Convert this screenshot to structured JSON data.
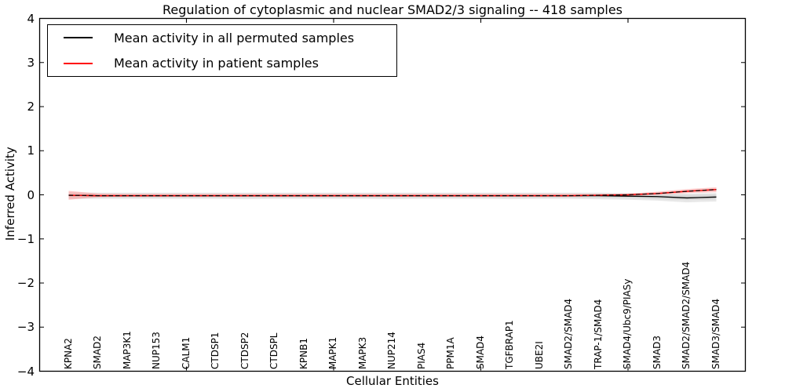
{
  "title": "Regulation of cytoplasmic and nuclear SMAD2/3 signaling -- 418 samples",
  "axes": {
    "xlabel": "Cellular Entities",
    "ylabel": "Inferred Activity",
    "yticklabels": [
      "4",
      "3",
      "2",
      "1",
      "0",
      "−1",
      "−2",
      "−3",
      "−4"
    ]
  },
  "legend": {
    "items": [
      {
        "label": "Mean activity in all permuted samples",
        "color": "#000000"
      },
      {
        "label": "Mean activity in patient samples",
        "color": "#ff0000"
      }
    ]
  },
  "chart_data": {
    "type": "line",
    "title": "Regulation of cytoplasmic and nuclear SMAD2/3 signaling -- 418 samples",
    "xlabel": "Cellular Entities",
    "ylabel": "Inferred Activity",
    "ylim": [
      -4,
      4
    ],
    "yticks": [
      -4,
      -3,
      -2,
      -1,
      0,
      1,
      2,
      3,
      4
    ],
    "xticks": [
      5,
      10,
      15,
      20
    ],
    "grid": false,
    "legend_position": "upper left",
    "categories": [
      "KPNA2",
      "SMAD2",
      "MAP3K1",
      "NUP153",
      "CALM1",
      "CTDSP1",
      "CTDSP2",
      "CTDSPL",
      "KPNB1",
      "MAPK1",
      "MAPK3",
      "NUP214",
      "PIAS4",
      "PPM1A",
      "SMAD4",
      "TGFBRAP1",
      "UBE2I",
      "SMAD2/SMAD4",
      "TRAP-1/SMAD4",
      "SMAD4/Ubc9/PIASy",
      "SMAD3",
      "SMAD2/SMAD2/SMAD4",
      "SMAD3/SMAD4"
    ],
    "series": [
      {
        "name": "Mean activity in all permuted samples",
        "color": "#000000",
        "linestyle": "solid",
        "values": [
          -0.01,
          -0.02,
          -0.02,
          -0.02,
          -0.02,
          -0.02,
          -0.02,
          -0.02,
          -0.02,
          -0.02,
          -0.02,
          -0.02,
          -0.02,
          -0.02,
          -0.02,
          -0.02,
          -0.02,
          -0.02,
          -0.02,
          -0.03,
          -0.04,
          -0.07,
          -0.05
        ],
        "band": {
          "color": "#e8e8e8",
          "upper": [
            0.06,
            0.05,
            0.05,
            0.05,
            0.05,
            0.05,
            0.05,
            0.05,
            0.05,
            0.05,
            0.05,
            0.05,
            0.05,
            0.05,
            0.05,
            0.05,
            0.05,
            0.05,
            0.05,
            0.04,
            0.04,
            0.03,
            0.04
          ],
          "lower": [
            -0.1,
            -0.09,
            -0.09,
            -0.09,
            -0.09,
            -0.09,
            -0.1,
            -0.09,
            -0.09,
            -0.09,
            -0.09,
            -0.1,
            -0.09,
            -0.09,
            -0.09,
            -0.1,
            -0.09,
            -0.09,
            -0.1,
            -0.11,
            -0.13,
            -0.17,
            -0.15
          ]
        },
        "band_inner": {
          "color": "#d5d5d5",
          "upper": [
            0.03,
            0.02,
            0.02,
            0.02,
            0.02,
            0.02,
            0.02,
            0.02,
            0.02,
            0.02,
            0.02,
            0.02,
            0.02,
            0.02,
            0.02,
            0.02,
            0.02,
            0.02,
            0.02,
            0.02,
            0.01,
            0.0,
            0.01
          ],
          "lower": [
            -0.06,
            -0.06,
            -0.06,
            -0.06,
            -0.06,
            -0.06,
            -0.06,
            -0.06,
            -0.06,
            -0.06,
            -0.06,
            -0.06,
            -0.06,
            -0.06,
            -0.06,
            -0.06,
            -0.06,
            -0.06,
            -0.06,
            -0.07,
            -0.09,
            -0.12,
            -0.1
          ]
        }
      },
      {
        "name": "Mean activity in patient samples",
        "color": "#ff0000",
        "linestyle": "solid",
        "dash_overlay_color": "#000000",
        "values": [
          -0.01,
          -0.02,
          -0.02,
          -0.02,
          -0.02,
          -0.02,
          -0.02,
          -0.02,
          -0.02,
          -0.02,
          -0.02,
          -0.02,
          -0.02,
          -0.02,
          -0.02,
          -0.02,
          -0.02,
          -0.02,
          -0.01,
          0.0,
          0.03,
          0.08,
          0.12
        ],
        "band": {
          "color": "#ff9999",
          "upper": [
            0.09,
            0.03,
            0.02,
            0.02,
            0.02,
            0.02,
            0.02,
            0.02,
            0.02,
            0.02,
            0.02,
            0.02,
            0.02,
            0.02,
            0.02,
            0.02,
            0.02,
            0.02,
            0.02,
            0.03,
            0.07,
            0.13,
            0.17
          ],
          "lower": [
            -0.11,
            -0.05,
            -0.04,
            -0.04,
            -0.04,
            -0.04,
            -0.04,
            -0.04,
            -0.04,
            -0.04,
            -0.04,
            -0.04,
            -0.04,
            -0.04,
            -0.04,
            -0.04,
            -0.04,
            -0.04,
            -0.03,
            -0.02,
            0.0,
            0.04,
            0.06
          ]
        }
      }
    ]
  }
}
